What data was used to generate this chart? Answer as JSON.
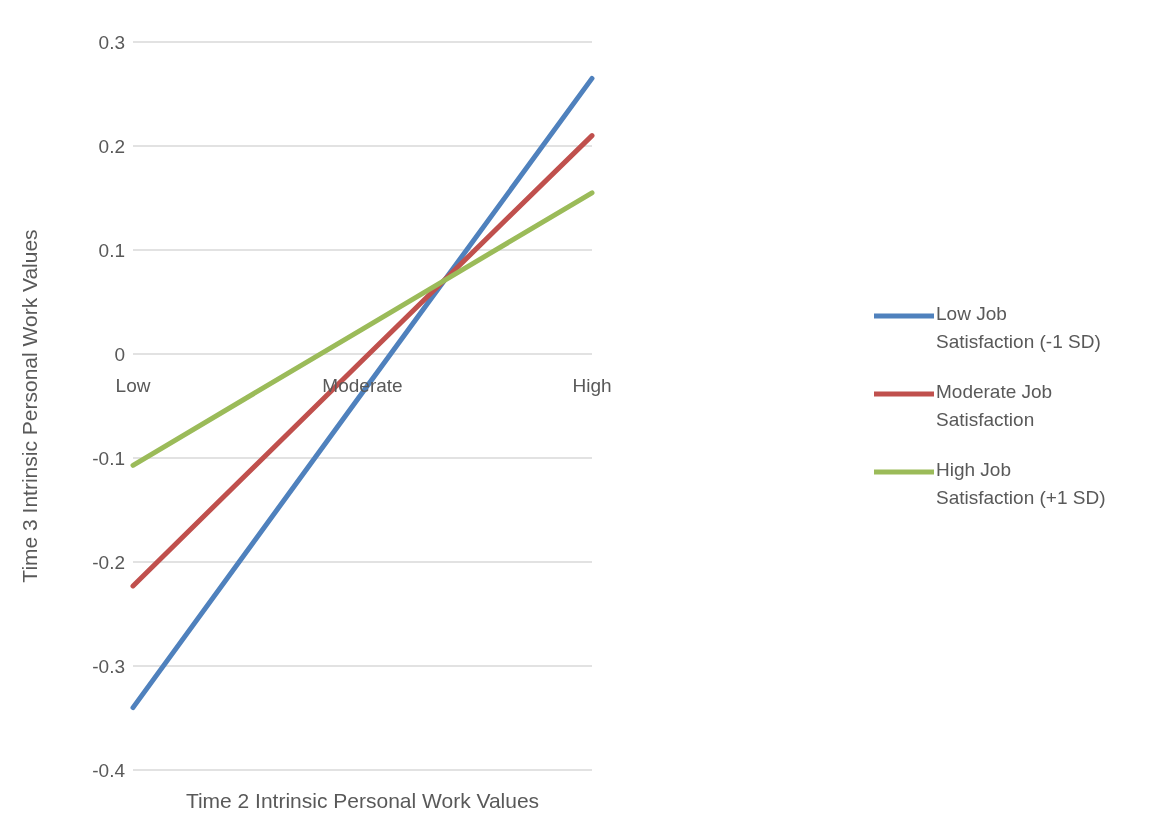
{
  "chart_data": {
    "type": "line",
    "xlabel": "Time 2 Intrinsic Personal Work Values",
    "ylabel": "Time 3 Intrinsic Personal Work Values",
    "categories": [
      "Low",
      "Moderate",
      "High"
    ],
    "series": [
      {
        "name": "Low Job Satisfaction (-1 SD)",
        "color": "#4f81bd",
        "values": [
          -0.34,
          -0.037,
          0.265
        ]
      },
      {
        "name": "Moderate Job Satisfaction",
        "color": "#c0504d",
        "values": [
          -0.223,
          -0.006,
          0.21
        ]
      },
      {
        "name": "High Job Satisfaction (+1 SD)",
        "color": "#9bbb59",
        "values": [
          -0.107,
          0.024,
          0.155
        ]
      }
    ],
    "ylim": [
      -0.4,
      0.3
    ],
    "yticks": [
      -0.4,
      -0.3,
      -0.2,
      -0.1,
      0,
      0.1,
      0.2,
      0.3
    ],
    "grid": "y",
    "legend": "right",
    "line_style": "solid"
  }
}
